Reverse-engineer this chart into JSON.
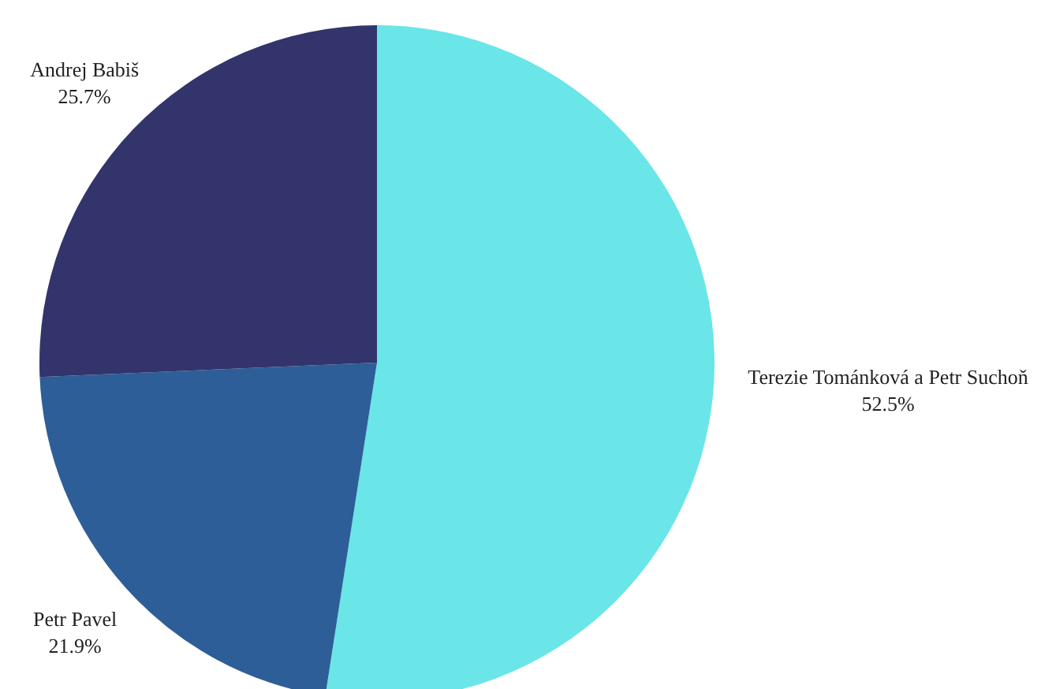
{
  "chart_data": {
    "type": "pie",
    "categories": [
      "Terezie Tománková a Petr Suchoň",
      "Petr Pavel",
      "Andrej Babiš"
    ],
    "values": [
      52.5,
      21.9,
      25.7
    ],
    "colors": [
      "#6ae5e8",
      "#2e5e98",
      "#32346b"
    ],
    "value_labels": [
      "52.5%",
      "21.9%",
      "25.7%"
    ],
    "legend": false
  }
}
